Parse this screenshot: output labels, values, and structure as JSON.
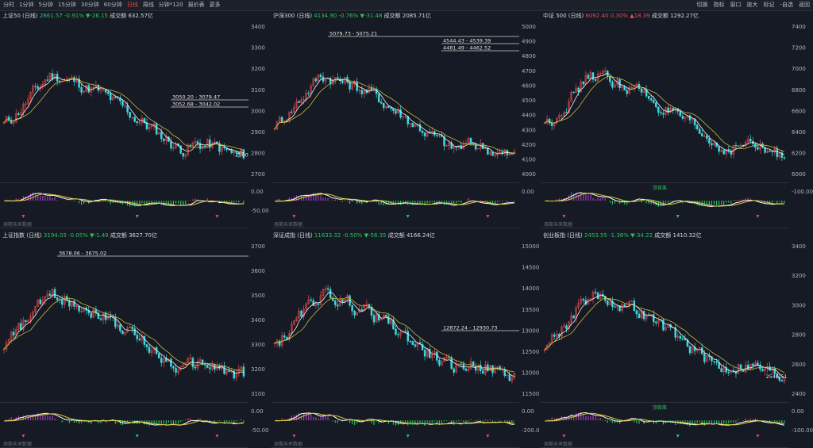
{
  "toolbar": {
    "periods": [
      "分时",
      "1分钟",
      "5分钟",
      "15分钟",
      "30分钟",
      "60分钟",
      "日线",
      "周线",
      "分钟*120",
      "报价表",
      "更多"
    ],
    "active_period": "日线",
    "right_items": [
      "切换",
      "指标",
      "窗口",
      "放大",
      "标记",
      "-自选",
      "返回"
    ]
  },
  "colors": {
    "up": "#e84a4a",
    "down": "#3fd8e0",
    "ma5": "#f2f2f2",
    "ma10": "#c9b93a",
    "bg": "#161a24"
  },
  "footer_hint": "周期未来数据",
  "panels": [
    {
      "name": "上证50 (日线)",
      "price": "2861.57",
      "pct": "-0.91%",
      "chg": "▼-26.15",
      "vol": "成交额 632.57亿",
      "dir": "down",
      "axis_labels": [],
      "gaps": [
        "3050.20 - 3079.47",
        "3052.68 - 3042.02"
      ],
      "tag": "2900",
      "macd_labels": [],
      "signals": []
    },
    {
      "name": "沪深300 (日线)",
      "price": "4134.90",
      "pct": "-0.76%",
      "chg": "▼-31.48",
      "vol": "成交额 2085.71亿",
      "dir": "down",
      "axis_labels": [
        "3400",
        "3300",
        "3200",
        "3100",
        "3000",
        "2900",
        "2800",
        "2700"
      ],
      "gaps": [
        "5079.73 - 5075.21",
        "4544.43 - 4539.39",
        "4481.49 - 4462.52"
      ],
      "tag": "",
      "macd_labels": [
        "0.00",
        "-50.00"
      ],
      "signals": []
    },
    {
      "name": "中证 500 (日线)",
      "price": "6092.40",
      "pct": "0.30%",
      "chg": "▲18.39",
      "vol": "成交额 1292.27亿",
      "dir": "up",
      "axis_labels": [
        "5000",
        "4900",
        "4800",
        "4700",
        "4600",
        "4500",
        "4400",
        "4300",
        "4200",
        "4100",
        "4000"
      ],
      "gaps": [],
      "tag": "",
      "macd_labels": [
        "0.00"
      ],
      "signals": [
        "顶背离"
      ]
    },
    {
      "name": "上证指数 (日线)",
      "price": "3194.03",
      "pct": "-0.05%",
      "chg": "▼-1.49",
      "vol": "成交额 3627.70亿",
      "dir": "down",
      "axis_labels": [],
      "gaps": [
        "3678.06 - 3675.02"
      ],
      "tag": "",
      "macd_labels": [],
      "signals": []
    },
    {
      "name": "深证成指 (日线)",
      "price": "11633.32",
      "pct": "-0.50%",
      "chg": "▼-58.35",
      "vol": "成交额 4166.24亿",
      "dir": "down",
      "axis_labels": [
        "3700",
        "3600",
        "3500",
        "3400",
        "3300",
        "3200",
        "3100"
      ],
      "gaps": [
        "12872.24 - 12930.73"
      ],
      "tag": "",
      "macd_labels": [
        "0.00",
        "-50.00"
      ],
      "signals": []
    },
    {
      "name": "创业板指 (日线)",
      "price": "2453.55",
      "pct": "-1.38%",
      "chg": "▼-34.22",
      "vol": "成交额 1410.32亿",
      "dir": "down",
      "axis_labels": [
        "15000",
        "14500",
        "14000",
        "13500",
        "13000",
        "12500",
        "12000",
        "11500"
      ],
      "gaps": [],
      "tag": "2546.51",
      "macd_labels": [
        "0.00",
        "-200.0"
      ],
      "signals": [
        "顶背离"
      ]
    }
  ],
  "side_axes": [
    {
      "labels": [
        "7400",
        "7200",
        "7000",
        "6800",
        "6600",
        "6400",
        "6200",
        "6000"
      ],
      "macd_labels": [
        "-100.00"
      ]
    },
    {
      "labels": [
        "3400",
        "3200",
        "3000",
        "2800",
        "2600",
        "2400"
      ],
      "macd_labels": [
        "0.00",
        "-100.00"
      ]
    }
  ]
}
